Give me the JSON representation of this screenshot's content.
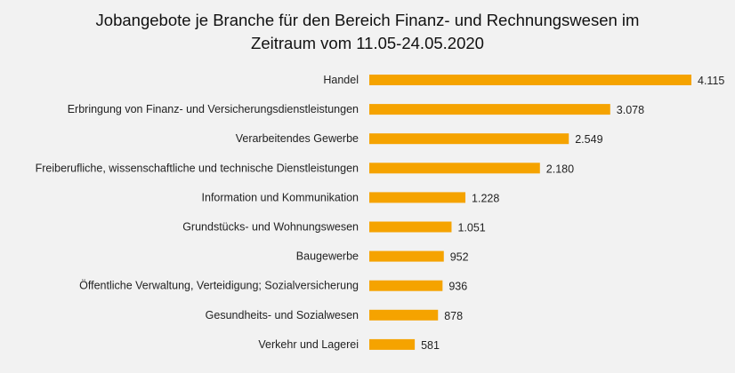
{
  "chart_data": {
    "type": "bar",
    "orientation": "horizontal",
    "title_lines": [
      "Jobangebote je Branche für den Bereich Finanz- und Rechnungswesen im",
      "Zeitraum vom 11.05-24.05.2020"
    ],
    "categories": [
      "Handel",
      "Erbringung von Finanz- und Versicherungsdienstleistungen",
      "Verarbeitendes Gewerbe",
      "Freiberufliche, wissenschaftliche und technische Dienstleistungen",
      "Information und Kommunikation",
      "Grundstücks- und Wohnungswesen",
      "Baugewerbe",
      "Öffentliche Verwaltung, Verteidigung; Sozialversicherung",
      "Gesundheits- und Sozialwesen",
      "Verkehr und Lagerei"
    ],
    "values": [
      4115,
      3078,
      2549,
      2180,
      1228,
      1051,
      952,
      936,
      878,
      581
    ],
    "value_labels": [
      "4.115",
      "3.078",
      "2.549",
      "2.180",
      "1.228",
      "1.051",
      "952",
      "936",
      "878",
      "581"
    ],
    "xlim": [
      0,
      4115
    ],
    "grid": false,
    "legend": "none",
    "bar_color": "#f5a300",
    "background_color": "#f2f2f2"
  }
}
